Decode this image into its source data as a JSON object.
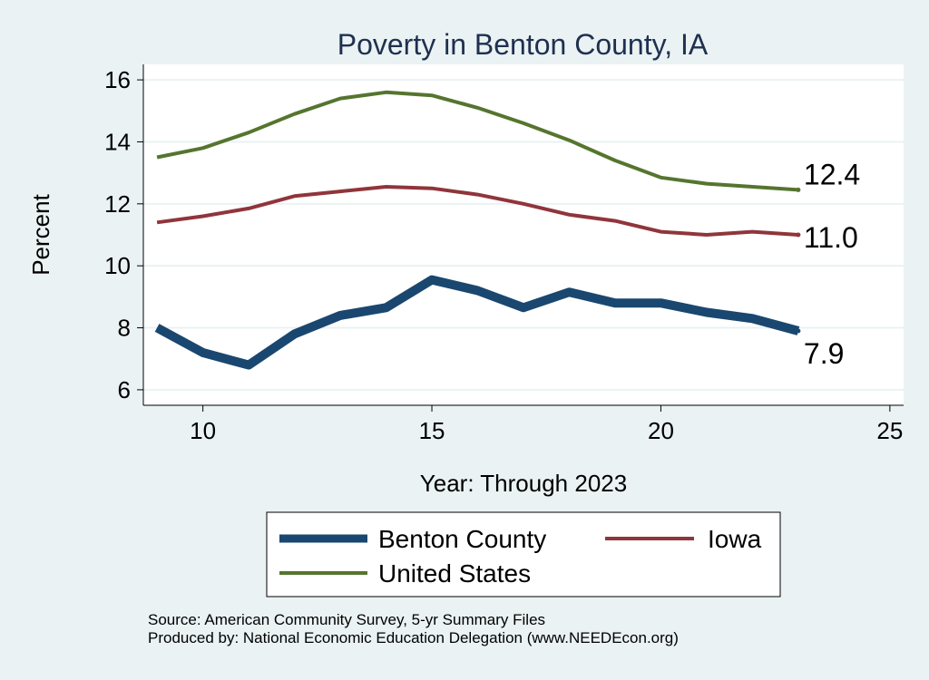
{
  "chart_data": {
    "type": "line",
    "title": "Poverty in Benton County, IA",
    "xlabel": "Year: Through 2023",
    "ylabel": "Percent",
    "xlim": [
      8.7,
      25.3
    ],
    "ylim": [
      5.5,
      16.5
    ],
    "xticks": [
      10,
      15,
      20,
      25
    ],
    "yticks": [
      6,
      8,
      10,
      12,
      14,
      16
    ],
    "grid": true,
    "legend_position": "bottom",
    "series": [
      {
        "name": "Benton County",
        "color": "#1a476f",
        "x": [
          9,
          10,
          11,
          12,
          13,
          14,
          15,
          16,
          17,
          18,
          19,
          20,
          21,
          22,
          23
        ],
        "values": [
          8.0,
          7.2,
          6.8,
          7.8,
          8.4,
          8.65,
          9.55,
          9.2,
          8.65,
          9.15,
          8.8,
          8.8,
          8.5,
          8.3,
          7.9
        ],
        "end_label": "7.9"
      },
      {
        "name": "Iowa",
        "color": "#90353b",
        "x": [
          9,
          10,
          11,
          12,
          13,
          14,
          15,
          16,
          17,
          18,
          19,
          20,
          21,
          22,
          23
        ],
        "values": [
          11.4,
          11.6,
          11.85,
          12.25,
          12.4,
          12.55,
          12.5,
          12.3,
          12.0,
          11.65,
          11.45,
          11.1,
          11.0,
          11.1,
          11.0
        ],
        "end_label": "11.0"
      },
      {
        "name": "United States",
        "color": "#55752f",
        "x": [
          9,
          10,
          11,
          12,
          13,
          14,
          15,
          16,
          17,
          18,
          19,
          20,
          21,
          22,
          23
        ],
        "values": [
          13.5,
          13.8,
          14.3,
          14.9,
          15.4,
          15.6,
          15.5,
          15.1,
          14.6,
          14.05,
          13.4,
          12.85,
          12.65,
          12.55,
          12.45
        ],
        "end_label": "12.4"
      }
    ]
  },
  "notes": {
    "source": "Source: American Community Survey, 5-yr Summary Files",
    "produced_by": "Produced by: National Economic Education Delegation (www.NEEDEcon.org)"
  }
}
